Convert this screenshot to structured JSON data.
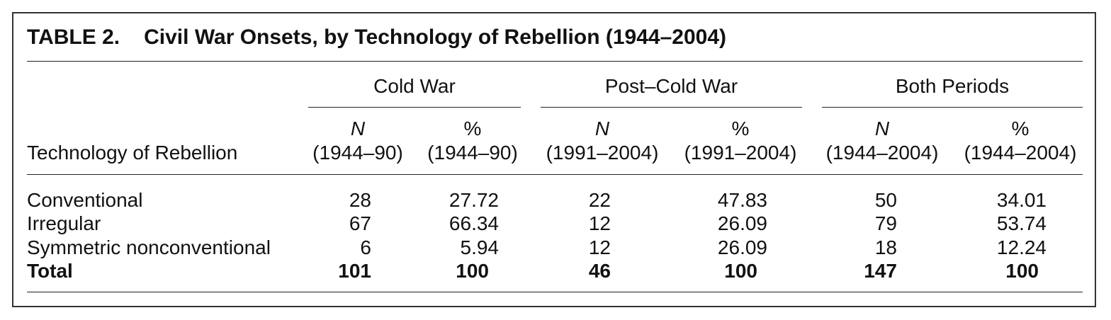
{
  "table": {
    "number": "TABLE 2.",
    "title": "Civil War Onsets, by Technology of Rebellion (1944–2004)",
    "row_header": "Technology of Rebellion",
    "groups": [
      {
        "label": "Cold War",
        "cols": [
          {
            "symbol": "N",
            "period": "(1944–90)"
          },
          {
            "symbol": "%",
            "period": "(1944–90)"
          }
        ]
      },
      {
        "label": "Post–Cold War",
        "cols": [
          {
            "symbol": "N",
            "period": "(1991–2004)"
          },
          {
            "symbol": "%",
            "period": "(1991–2004)"
          }
        ]
      },
      {
        "label": "Both Periods",
        "cols": [
          {
            "symbol": "N",
            "period": "(1944–2004)"
          },
          {
            "symbol": "%",
            "period": "(1944–2004)"
          }
        ]
      }
    ],
    "rows": [
      {
        "label": "Conventional",
        "values": [
          "28",
          "27.72",
          "22",
          "47.83",
          "50",
          "34.01"
        ]
      },
      {
        "label": "Irregular",
        "values": [
          "67",
          "66.34",
          "12",
          "26.09",
          "79",
          "53.74"
        ]
      },
      {
        "label": "Symmetric nonconventional",
        "values": [
          "6",
          "5.94",
          "12",
          "26.09",
          "18",
          "12.24"
        ]
      }
    ],
    "total": {
      "label": "Total",
      "values": [
        "101",
        "100",
        "46",
        "100",
        "147",
        "100"
      ]
    }
  }
}
